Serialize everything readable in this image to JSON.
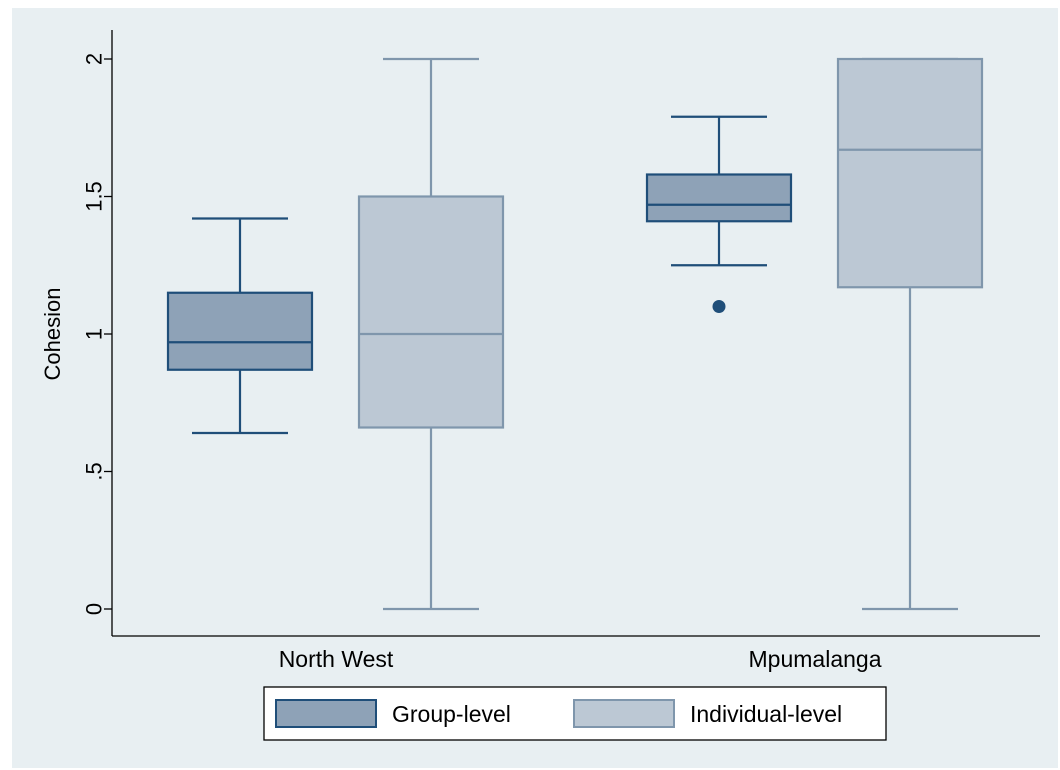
{
  "chart_data": {
    "type": "box",
    "ylabel": "Cohesion",
    "ylim": [
      0,
      2
    ],
    "yticks": [
      0,
      0.5,
      1,
      1.5,
      2
    ],
    "ytick_labels": [
      "0",
      ".5",
      "1",
      "1.5",
      "2"
    ],
    "grid": false,
    "legend_position": "bottom",
    "categories": [
      "North West",
      "Mpumalanga"
    ],
    "series": [
      {
        "name": "Group-level",
        "fill": "#8ea2b7",
        "stroke": "#1f4e79",
        "boxes": [
          {
            "min": 0.64,
            "q1": 0.87,
            "median": 0.97,
            "q3": 1.15,
            "max": 1.42,
            "outliers": []
          },
          {
            "min": 1.25,
            "q1": 1.41,
            "median": 1.47,
            "q3": 1.58,
            "max": 1.79,
            "outliers": [
              1.1
            ]
          }
        ]
      },
      {
        "name": "Individual-level",
        "fill": "#bcc8d4",
        "stroke": "#7f96ac",
        "boxes": [
          {
            "min": 0.0,
            "q1": 0.66,
            "median": 1.0,
            "q3": 1.5,
            "max": 2.0,
            "outliers": []
          },
          {
            "min": 0.0,
            "q1": 1.17,
            "median": 1.67,
            "q3": 2.0,
            "max": 2.0,
            "outliers": []
          }
        ]
      }
    ],
    "colors": {
      "background": "#e8eff2",
      "plot_background": "#e8eff2",
      "outer_background": "#ffffff"
    }
  }
}
